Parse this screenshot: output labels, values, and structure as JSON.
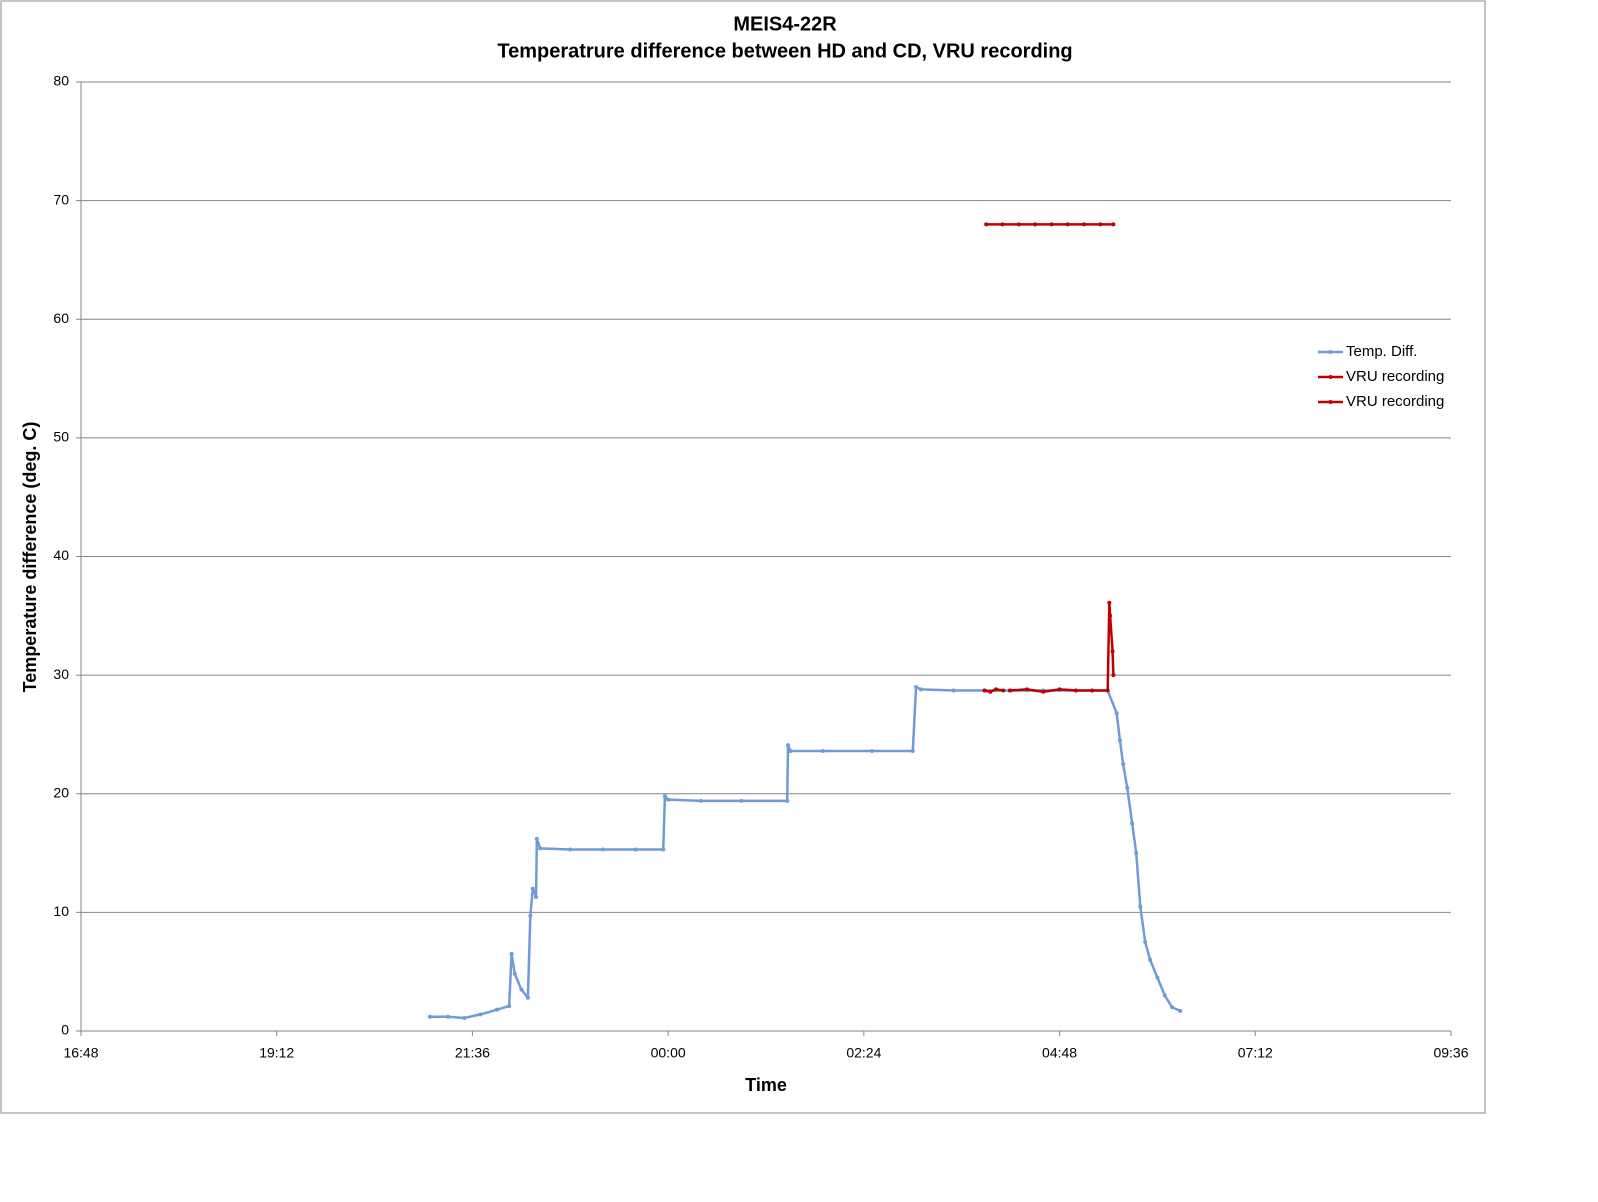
{
  "chart_data": {
    "type": "line",
    "title": "MEIS4-22R",
    "subtitle": "Temperatrure difference between HD and CD, VRU recording",
    "x_label": "Time",
    "y_label": "Temperature difference (deg. C)",
    "xlim": [
      16.8,
      33.6
    ],
    "ylim": [
      0,
      80
    ],
    "xticks": [
      {
        "value": 16.8,
        "label": "16:48"
      },
      {
        "value": 19.2,
        "label": "19:12"
      },
      {
        "value": 21.6,
        "label": "21:36"
      },
      {
        "value": 24.0,
        "label": "00:00"
      },
      {
        "value": 26.4,
        "label": "02:24"
      },
      {
        "value": 28.8,
        "label": "04:48"
      },
      {
        "value": 31.2,
        "label": "07:12"
      },
      {
        "value": 33.6,
        "label": "09:36"
      }
    ],
    "yticks": [
      0,
      10,
      20,
      30,
      40,
      50,
      60,
      70,
      80
    ],
    "grid": true,
    "legend": "right",
    "series": [
      {
        "name": "Temp. Diff.",
        "color": "#6f9bd8",
        "x": [
          21.08,
          21.3,
          21.5,
          21.7,
          21.9,
          22.05,
          22.08,
          22.12,
          22.2,
          22.28,
          22.31,
          22.34,
          22.38,
          22.39,
          22.43,
          22.8,
          23.2,
          23.6,
          23.94,
          23.96,
          24.0,
          24.4,
          24.9,
          25.46,
          25.47,
          25.5,
          25.9,
          26.5,
          27.0,
          27.04,
          27.1,
          27.5,
          27.88,
          28.2,
          28.6,
          29.0,
          29.39,
          29.5,
          29.54,
          29.58,
          29.63,
          29.69,
          29.74,
          29.79,
          29.85,
          29.91,
          30.0,
          30.09,
          30.18,
          30.28
        ],
        "values": [
          1.2,
          1.2,
          1.1,
          1.4,
          1.8,
          2.1,
          6.5,
          4.8,
          3.5,
          2.8,
          9.7,
          12.0,
          11.3,
          16.2,
          15.4,
          15.3,
          15.3,
          15.3,
          15.3,
          19.8,
          19.5,
          19.4,
          19.4,
          19.4,
          24.1,
          23.6,
          23.6,
          23.6,
          23.6,
          29.0,
          28.8,
          28.7,
          28.7,
          28.7,
          28.7,
          28.7,
          28.7,
          26.8,
          24.5,
          22.5,
          20.5,
          17.5,
          15.0,
          10.5,
          7.5,
          6.0,
          4.5,
          3.0,
          2.0,
          1.7
        ]
      },
      {
        "name": "VRU recording",
        "color": "#c00000",
        "x": [
          27.88,
          27.95,
          28.02,
          28.11,
          28.15,
          28.19,
          28.4,
          28.6,
          28.8,
          29.0,
          29.2,
          29.39,
          29.41,
          29.42,
          29.45,
          29.46
        ],
        "values": [
          28.7,
          28.6,
          28.8,
          28.7,
          null,
          28.7,
          28.8,
          28.6,
          28.8,
          28.7,
          28.7,
          28.7,
          36.1,
          35.0,
          32.0,
          30.0
        ]
      },
      {
        "name": "VRU recording",
        "color": "#c00000",
        "x": [
          27.9,
          28.1,
          28.3,
          28.5,
          28.7,
          28.9,
          29.1,
          29.3,
          29.46
        ],
        "values": [
          68,
          68,
          68,
          68,
          68,
          68,
          68,
          68,
          68
        ]
      }
    ]
  }
}
